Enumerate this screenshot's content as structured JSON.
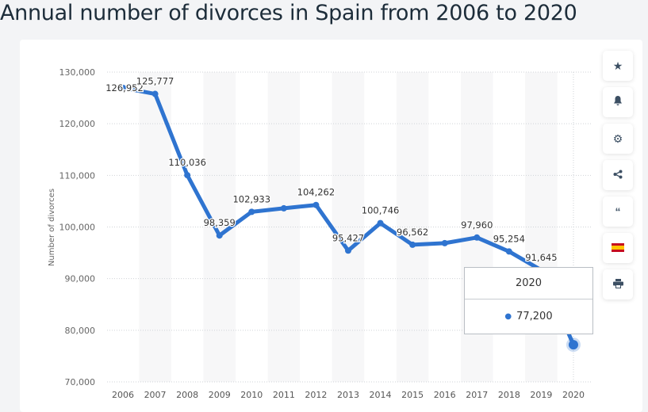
{
  "title": "Annual number of divorces in Spain from 2006 to 2020",
  "sidebar": {
    "icons": [
      "star-icon",
      "bell-icon",
      "gear-icon",
      "share-icon",
      "quote-icon",
      "spain-flag-icon",
      "print-icon"
    ]
  },
  "tooltip": {
    "year": "2020",
    "value": "77,200"
  },
  "colors": {
    "line": "#2f74d0",
    "band": "#f7f7f8",
    "grid": "#cfd3d7"
  },
  "chart_data": {
    "type": "line",
    "ylabel": "Number of divorces",
    "xlabel": "",
    "ylim": [
      70000,
      130000
    ],
    "yticks": [
      "70,000",
      "80,000",
      "90,000",
      "100,000",
      "110,000",
      "120,000",
      "130,000"
    ],
    "grid": true,
    "categories": [
      "2006",
      "2007",
      "2008",
      "2009",
      "2010",
      "2011",
      "2012",
      "2013",
      "2014",
      "2015",
      "2016",
      "2017",
      "2018",
      "2019",
      "2020"
    ],
    "values": [
      126952,
      125777,
      110036,
      98359,
      102933,
      103620,
      104262,
      95427,
      100746,
      96562,
      96870,
      97960,
      95254,
      91645,
      77200
    ],
    "labels": [
      "126,952",
      "125,777",
      "110,036",
      "98,359",
      "102,933",
      "",
      "104,262",
      "95,427",
      "100,746",
      "96,562",
      "",
      "97,960",
      "95,254",
      "91,645",
      ""
    ]
  }
}
